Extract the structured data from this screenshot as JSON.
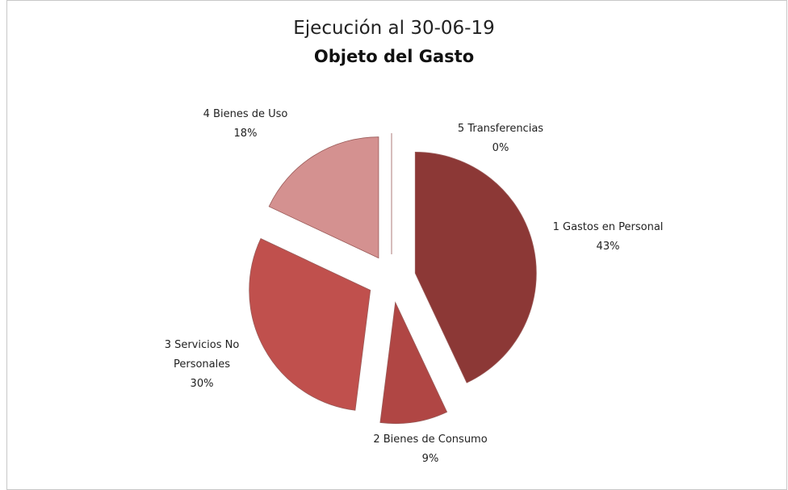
{
  "chart_data": {
    "type": "pie",
    "title": "Ejecución al 30-06-19",
    "subtitle": "Objeto del Gasto",
    "categories": [
      "1 Gastos en Personal",
      "2 Bienes de Consumo",
      "3 Servicios No Personales",
      "4 Bienes de Uso",
      "5 Transferencias"
    ],
    "values": [
      43,
      9,
      30,
      18,
      0
    ],
    "value_labels": [
      "43%",
      "9%",
      "30%",
      "18%",
      "0%"
    ],
    "colors": [
      "#8c3836",
      "#b04644",
      "#c0504d",
      "#d49190",
      "#ffffff"
    ]
  }
}
